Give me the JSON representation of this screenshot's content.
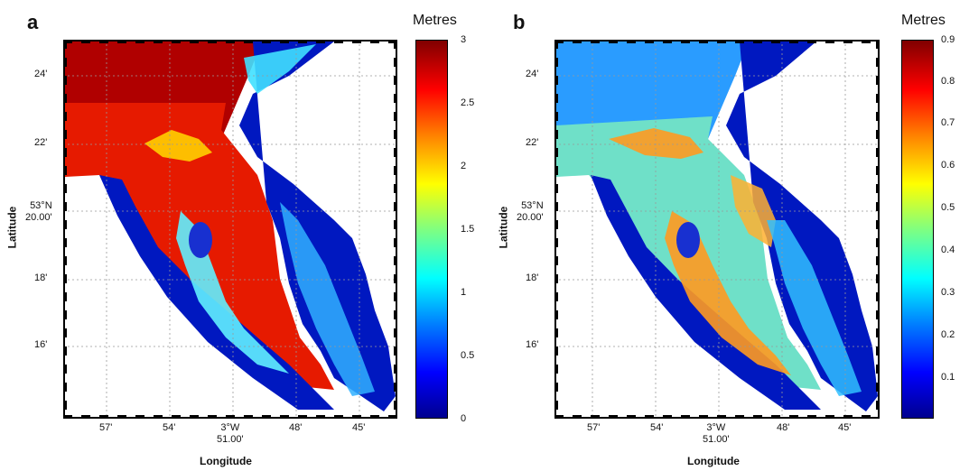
{
  "panels": [
    {
      "letter": "a",
      "colorbar_title": "Metres",
      "colorbar_ticks": [
        "3",
        "2.5",
        "2",
        "1.5",
        "1",
        "0.5",
        "0"
      ],
      "y_ticks": [
        "24'",
        "22'",
        "53°N\n20.00'",
        "18'",
        "16'"
      ],
      "x_ticks": [
        "57'",
        "54'",
        "3°W\n51.00'",
        "48'",
        "45'"
      ],
      "ylabel": "Latitude",
      "xlabel": "Longitude"
    },
    {
      "letter": "b",
      "colorbar_title": "Metres",
      "colorbar_ticks": [
        "0.9",
        "0.8",
        "0.7",
        "0.6",
        "0.5",
        "0.4",
        "0.3",
        "0.2",
        "0.1"
      ],
      "y_ticks": [
        "24'",
        "22'",
        "53°N\n20.00'",
        "18'",
        "16'"
      ],
      "x_ticks": [
        "57'",
        "54'",
        "3°W\n51.00'",
        "48'",
        "45'"
      ],
      "ylabel": "Latitude",
      "xlabel": "Longitude"
    }
  ],
  "colormap": [
    "#00008f",
    "#0000ff",
    "#0080ff",
    "#00ffff",
    "#80ff80",
    "#ffff00",
    "#ff8000",
    "#ff0000",
    "#800000"
  ],
  "map_colors": {
    "panel_a": {
      "high": "#b00000",
      "upper": "#e61a00",
      "mid": "#40e0ff",
      "low": "#0018c0"
    },
    "panel_b": {
      "base": "#2a9cff",
      "channel": "#6fe0c8",
      "high": "#ff9a20",
      "low": "#0018c0"
    }
  }
}
